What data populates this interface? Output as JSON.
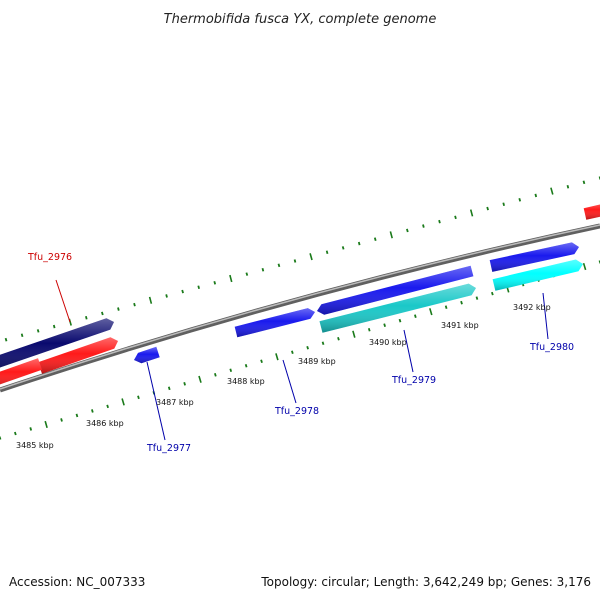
{
  "title": "Thermobifida fusca YX, complete genome",
  "footer": {
    "accession": "Accession: NC_007333",
    "summary": "Topology: circular; Length: 3,642,249 bp; Genes: 3,176"
  },
  "colors": {
    "backbone": "#8a8a8a",
    "tick": "#1a7a1a",
    "label_red": "#cc0000",
    "label_blue": "#0000aa"
  },
  "tick_labels": [
    "3485 kbp",
    "3486 kbp",
    "3487 kbp",
    "3488 kbp",
    "3489 kbp",
    "3490 kbp",
    "3491 kbp",
    "3492 kbp"
  ],
  "gene_labels": [
    "Tfu_2976",
    "Tfu_2977",
    "Tfu_2978",
    "Tfu_2979",
    "Tfu_2980"
  ],
  "features": [
    {
      "gene": "Tfu_2976",
      "strand": "+",
      "color": "#0a0a6e"
    },
    {
      "gene": "",
      "strand": "+",
      "color": "#ff1a1a"
    },
    {
      "gene": "",
      "strand": "-",
      "color": "#ff1a1a"
    },
    {
      "gene": "Tfu_2977",
      "strand": "-",
      "color": "#1a1aee"
    },
    {
      "gene": "Tfu_2978",
      "strand": "+",
      "color": "#1a1aee"
    },
    {
      "gene": "",
      "strand": "-",
      "color": "#1a1aee"
    },
    {
      "gene": "Tfu_2979",
      "strand": "+",
      "color": "#1ac8c8"
    },
    {
      "gene": "",
      "strand": "+",
      "color": "#1a1aee"
    },
    {
      "gene": "Tfu_2980",
      "strand": "+",
      "color": "#00ffff"
    },
    {
      "gene": "",
      "strand": "+",
      "color": "#ff1a1a"
    }
  ]
}
